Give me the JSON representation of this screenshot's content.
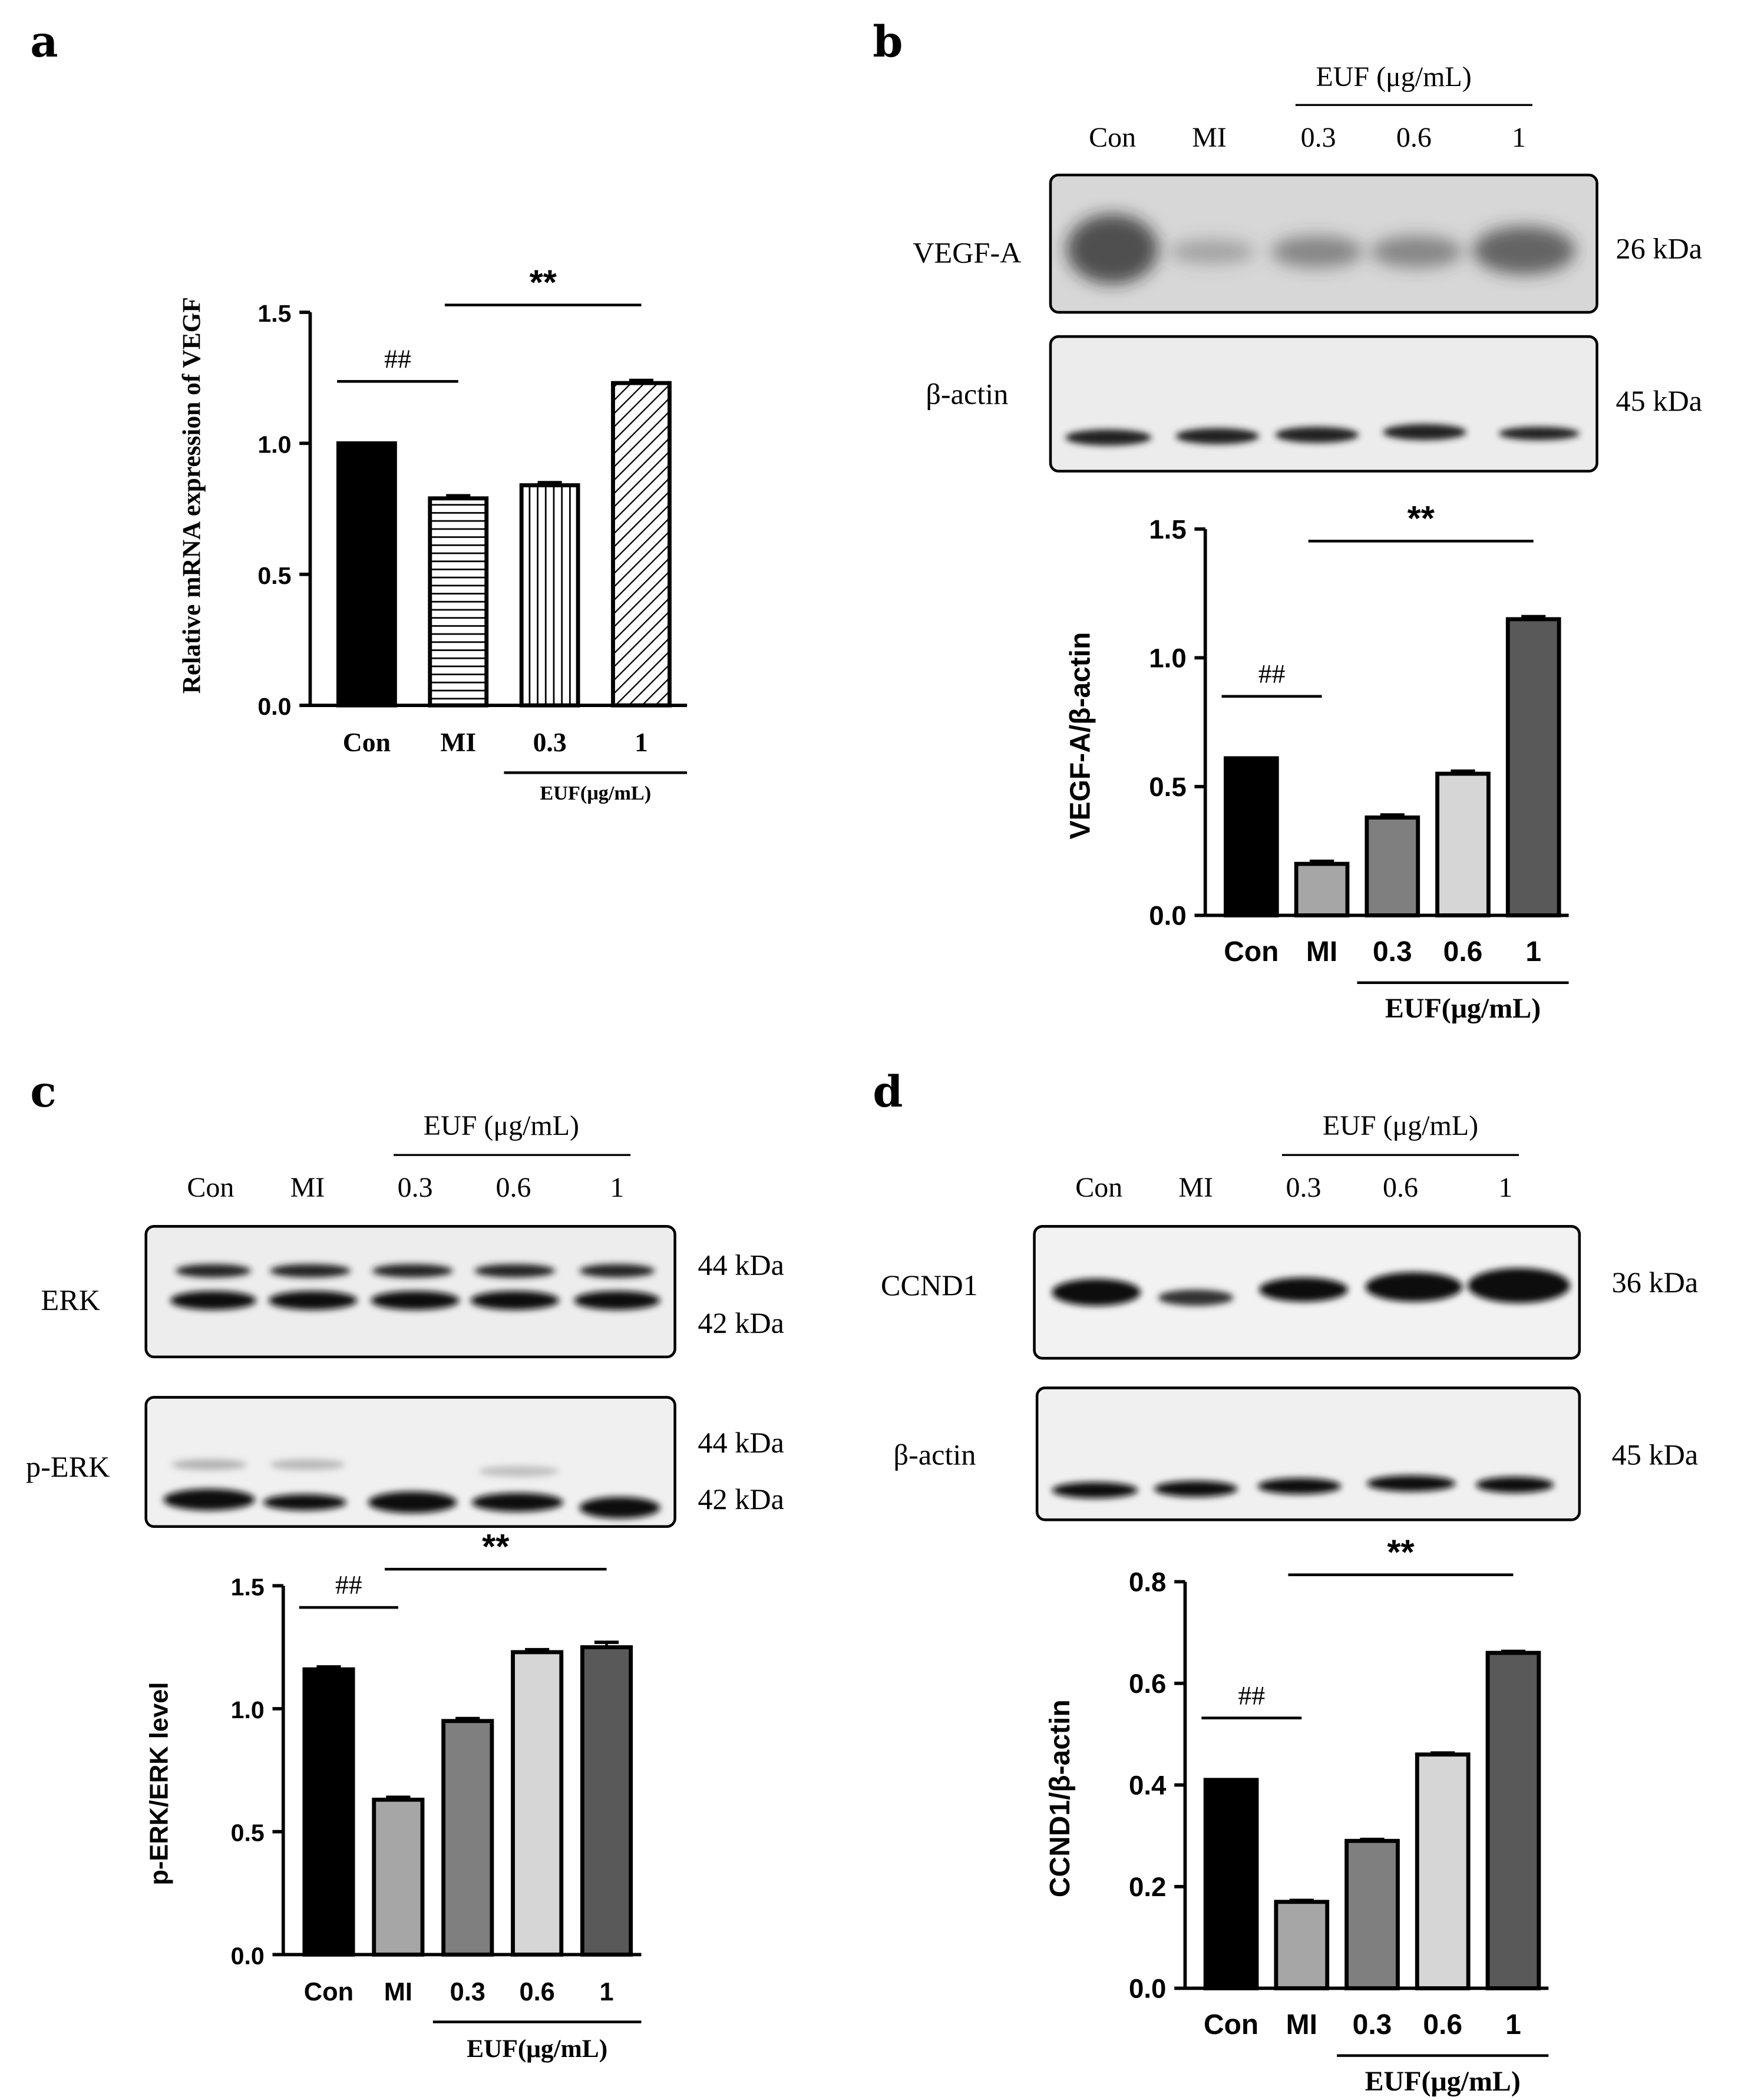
{
  "panel_labels": [
    "a",
    "b",
    "c",
    "d"
  ],
  "group_label_blot": "EUF (μg/mL)",
  "group_label_chart": "EUF(μg/mL)",
  "blot_lanes": [
    "Con",
    "MI",
    "0.3",
    "0.6",
    "1"
  ],
  "blots": [
    {
      "rows": [
        {
          "name": "VEGF-A",
          "kda": [
            "26 kDa"
          ]
        },
        {
          "name": "β-actin",
          "kda": [
            "45 kDa"
          ]
        }
      ]
    },
    {
      "rows": [
        {
          "name": "ERK",
          "kda": [
            "44 kDa",
            "42 kDa"
          ]
        },
        {
          "name": "p-ERK",
          "kda": [
            "44 kDa",
            "42 kDa"
          ]
        }
      ]
    },
    {
      "rows": [
        {
          "name": "CCND1",
          "kda": [
            "36 kDa"
          ]
        },
        {
          "name": "β-actin",
          "kda": [
            "45 kDa"
          ]
        }
      ]
    }
  ],
  "colors": {
    "con": "#000000",
    "mi": "#a6a6a6",
    "euf_03": "#7f7f7f",
    "euf_06": "#d6d6d6",
    "euf_1": "#595959",
    "axis": "#000000"
  },
  "chart_data": [
    {
      "panel": "a",
      "type": "bar",
      "categories": [
        "Con",
        "MI",
        "0.3",
        "1"
      ],
      "values": [
        1.0,
        0.79,
        0.84,
        1.23
      ],
      "errors": [
        0.0,
        0.01,
        0.01,
        0.01
      ],
      "fills": [
        "solid",
        "horizontal-stripes",
        "vertical-stripes",
        "diagonal-stripes"
      ],
      "ylabel": "Relative mRNA expression of VEGF",
      "xgroup_label": "EUF(μg/mL)",
      "ylim": [
        0,
        1.5
      ],
      "yticks": [
        "0.0",
        "0.5",
        "1.0",
        "1.5"
      ],
      "annotations": [
        {
          "text": "##",
          "from": "Con",
          "to": "MI"
        },
        {
          "text": "**",
          "from": "MI",
          "to": "1"
        }
      ]
    },
    {
      "panel": "b",
      "type": "bar",
      "categories": [
        "Con",
        "MI",
        "0.3",
        "0.6",
        "1"
      ],
      "values": [
        0.61,
        0.2,
        0.38,
        0.55,
        1.15
      ],
      "errors": [
        0.0,
        0.01,
        0.01,
        0.01,
        0.01
      ],
      "ylabel": "VEGF-A/β-actin",
      "xgroup_label": "EUF(μg/mL)",
      "ylim": [
        0,
        1.5
      ],
      "yticks": [
        "0.0",
        "0.5",
        "1.0",
        "1.5"
      ],
      "annotations": [
        {
          "text": "##",
          "from": "Con",
          "to": "MI"
        },
        {
          "text": "**",
          "from": "MI",
          "to": "1"
        }
      ]
    },
    {
      "panel": "c",
      "type": "bar",
      "categories": [
        "Con",
        "MI",
        "0.3",
        "0.6",
        "1"
      ],
      "values": [
        1.16,
        0.63,
        0.95,
        1.23,
        1.25
      ],
      "errors": [
        0.01,
        0.01,
        0.01,
        0.01,
        0.02
      ],
      "ylabel": "p-ERK/ERK level",
      "xgroup_label": "EUF(μg/mL)",
      "ylim": [
        0,
        1.5
      ],
      "yticks": [
        "0.0",
        "0.5",
        "1.0",
        "1.5"
      ],
      "annotations": [
        {
          "text": "##",
          "from": "Con",
          "to": "MI"
        },
        {
          "text": "**",
          "from": "MI",
          "to": "1"
        }
      ]
    },
    {
      "panel": "d",
      "type": "bar",
      "categories": [
        "Con",
        "MI",
        "0.3",
        "0.6",
        "1"
      ],
      "values": [
        0.41,
        0.17,
        0.29,
        0.46,
        0.66
      ],
      "errors": [
        0.0,
        0.003,
        0.003,
        0.003,
        0.003
      ],
      "ylabel": "CCND1/β-actin",
      "xgroup_label": "EUF(μg/mL)",
      "ylim": [
        0,
        0.8
      ],
      "yticks": [
        "0.0",
        "0.2",
        "0.4",
        "0.6",
        "0.8"
      ],
      "annotations": [
        {
          "text": "##",
          "from": "Con",
          "to": "MI"
        },
        {
          "text": "**",
          "from": "MI",
          "to": "1"
        }
      ]
    }
  ]
}
